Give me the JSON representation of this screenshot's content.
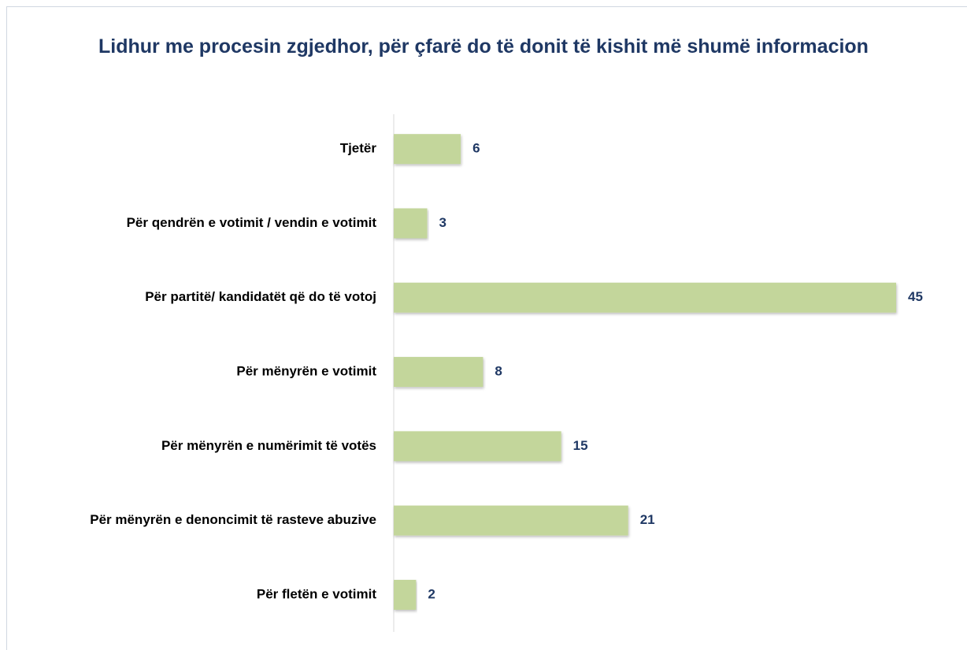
{
  "chart_data": {
    "type": "bar",
    "orientation": "horizontal",
    "title": "Lidhur me procesin zgjedhor, për çfarë do të donit të kishit më shumë informacion",
    "categories": [
      "Tjetër",
      "Për qendrën e votimit / vendin e votimit",
      "Për partitë/ kandidatët që do të votoj",
      "Për mënyrën e votimit",
      "Për mënyrën e numërimit të votës",
      "Për mënyrën e denoncimit të rasteve abuzive",
      "Për fletën e votimit"
    ],
    "values": [
      6,
      3,
      45,
      8,
      15,
      21,
      2
    ],
    "color": "#c3d69b",
    "label_color": "#1f3864",
    "grid": false
  }
}
